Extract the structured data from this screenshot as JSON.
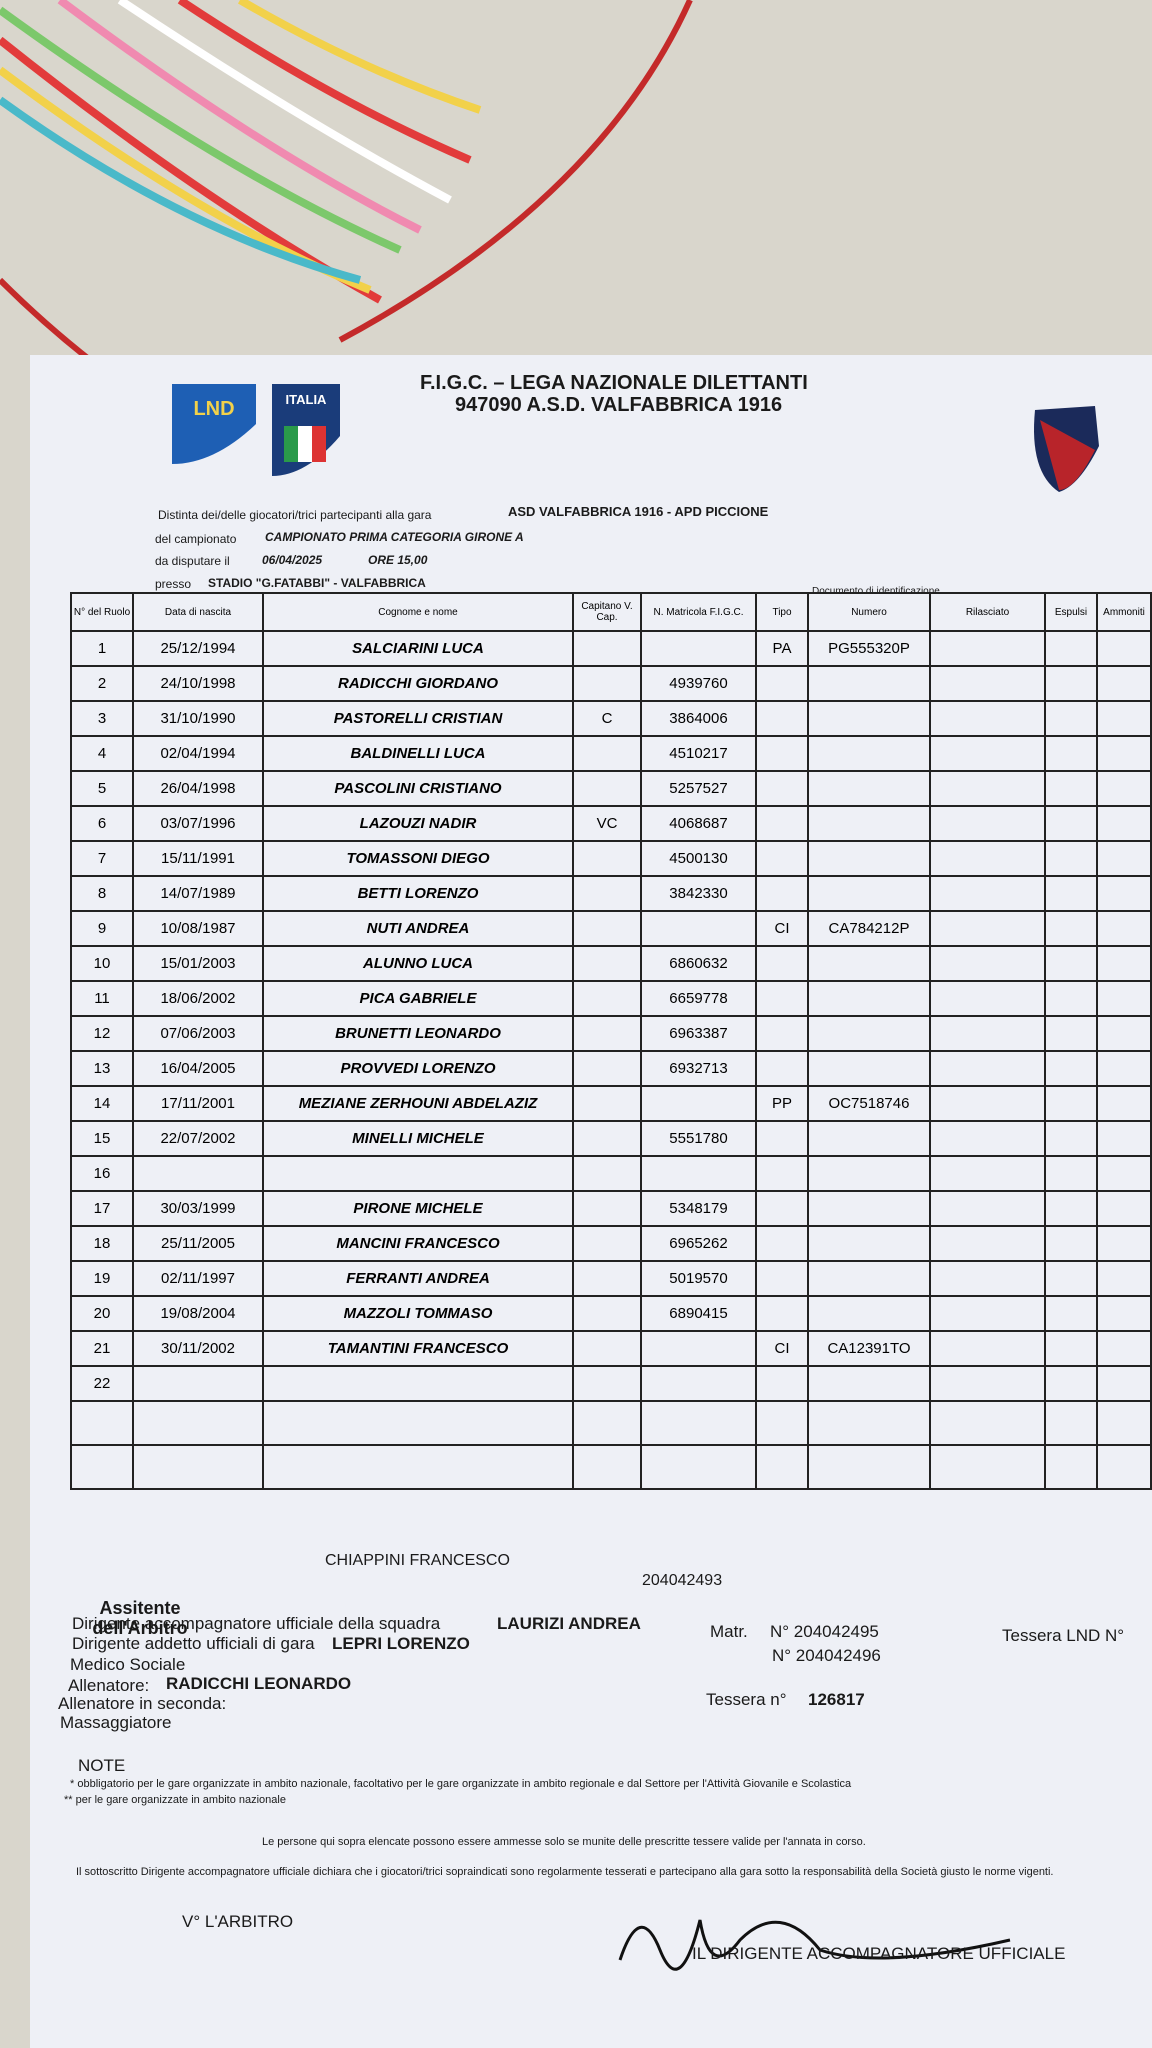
{
  "header": {
    "line1": "F.I.G.C. – LEGA NAZIONALE DILETTANTI",
    "line2": "947090 A.S.D. VALFABBRICA 1916",
    "logo1": "LND",
    "logo2": "ITALIA"
  },
  "info": {
    "distinta_label": "Distinta dei/delle giocatori/trici partecipanti alla gara",
    "match": "ASD VALFABBRICA 1916  -  APD PICCIONE",
    "campionato_label": "del campionato",
    "campionato": "CAMPIONATO PRIMA CATEGORIA GIRONE A",
    "date_label": "da disputare il",
    "date": "06/04/2025",
    "ore": "ORE 15,00",
    "presso_label": "presso",
    "stadio": "STADIO \"G.FATABBI\" - VALFABBRICA"
  },
  "table": {
    "doc_group": "Documento di identificazione",
    "headers": [
      "N° del Ruolo",
      "Data di nascita",
      "Cognome e nome",
      "Capitano V. Cap.",
      "N. Matricola F.I.G.C.",
      "Tipo",
      "Numero",
      "Rilasciato",
      "Espulsi",
      "Ammoniti"
    ],
    "rows": [
      [
        1,
        "25/12/1994",
        "SALCIARINI LUCA",
        null,
        null,
        "PA",
        "PG555320P"
      ],
      [
        2,
        "24/10/1998",
        "RADICCHI GIORDANO",
        null,
        "4939760",
        null,
        null
      ],
      [
        3,
        "31/10/1990",
        "PASTORELLI CRISTIAN",
        "C",
        "3864006",
        null,
        null
      ],
      [
        4,
        "02/04/1994",
        "BALDINELLI LUCA",
        null,
        "4510217",
        null,
        null
      ],
      [
        5,
        "26/04/1998",
        "PASCOLINI CRISTIANO",
        null,
        "5257527",
        null,
        null
      ],
      [
        6,
        "03/07/1996",
        "LAZOUZI NADIR",
        "VC",
        "4068687",
        null,
        null
      ],
      [
        7,
        "15/11/1991",
        "TOMASSONI DIEGO",
        null,
        "4500130",
        null,
        null
      ],
      [
        8,
        "14/07/1989",
        "BETTI LORENZO",
        null,
        "3842330",
        null,
        null
      ],
      [
        9,
        "10/08/1987",
        "NUTI ANDREA",
        null,
        null,
        "CI",
        "CA784212P"
      ],
      [
        10,
        "15/01/2003",
        "ALUNNO LUCA",
        null,
        "6860632",
        null,
        null
      ],
      [
        11,
        "18/06/2002",
        "PICA GABRIELE",
        null,
        "6659778",
        null,
        null
      ],
      [
        12,
        "07/06/2003",
        "BRUNETTI LEONARDO",
        null,
        "6963387",
        null,
        null
      ],
      [
        13,
        "16/04/2005",
        "PROVVEDI LORENZO",
        null,
        "6932713",
        null,
        null
      ],
      [
        14,
        "17/11/2001",
        "MEZIANE ZERHOUNI ABDELAZIZ",
        null,
        null,
        "PP",
        "OC7518746"
      ],
      [
        15,
        "22/07/2002",
        "MINELLI MICHELE",
        null,
        "5551780",
        null,
        null
      ],
      [
        16,
        null,
        null,
        null,
        null,
        null,
        null
      ],
      [
        17,
        "30/03/1999",
        "PIRONE MICHELE",
        null,
        "5348179",
        null,
        null
      ],
      [
        18,
        "25/11/2005",
        "MANCINI FRANCESCO",
        null,
        "6965262",
        null,
        null
      ],
      [
        19,
        "02/11/1997",
        "FERRANTI ANDREA",
        null,
        "5019570",
        null,
        null
      ],
      [
        20,
        "19/08/2004",
        "MAZZOLI TOMMASO",
        null,
        "6890415",
        null,
        null
      ],
      [
        21,
        "30/11/2002",
        "TAMANTINI FRANCESCO",
        null,
        null,
        "CI",
        "CA12391TO"
      ],
      [
        22,
        null,
        null,
        null,
        null,
        null,
        null
      ],
      [
        null,
        null,
        null,
        null,
        null,
        null,
        null
      ],
      [
        null,
        null,
        null,
        null,
        null,
        null,
        null
      ]
    ],
    "assistant": {
      "label": "Assitente dell'Arbitro",
      "name": "CHIAPPINI FRANCESCO",
      "number": "204042493"
    }
  },
  "footer": {
    "dirigente_label": "Dirigente accompagnatore ufficiale della squadra",
    "dirigente": "LAURIZI ANDREA",
    "matr_label": "Matr.",
    "dirigente_n": "N° 204042495",
    "tessera_lnd": "Tessera LND N°",
    "addetto_label": "Dirigente addetto ufficiali di gara",
    "addetto": "LEPRI LORENZO",
    "addetto_n": "N° 204042496",
    "medico": "Medico Sociale",
    "allenatore_label": "Allenatore:",
    "allenatore": "RADICCHI LEONARDO",
    "seconda": "Allenatore in seconda:",
    "tessera_label": "Tessera n°",
    "tessera": "126817",
    "massaggiatore": "Massaggiatore",
    "note": "NOTE",
    "note1": "* obbligatorio per le gare organizzate in ambito nazionale, facoltativo per le gare organizzate in ambito regionale e dal Settore per l'Attività Giovanile e Scolastica",
    "note2": "** per le gare organizzate in ambito nazionale",
    "persone": "Le persone qui sopra elencate possono essere ammesse solo se munite delle prescritte tessere valide per l'annata in corso.",
    "dichiara": "Il sottoscritto Dirigente accompagnatore ufficiale dichiara che i giocatori/trici sopraindicati sono regolarmente tesserati e partecipano alla gara sotto la responsabilità della Società giusto le norme vigenti.",
    "arbitro": "V° L'ARBITRO",
    "firma": "IL DIRIGENTE ACCOMPAGNATORE UFFICIALE"
  }
}
